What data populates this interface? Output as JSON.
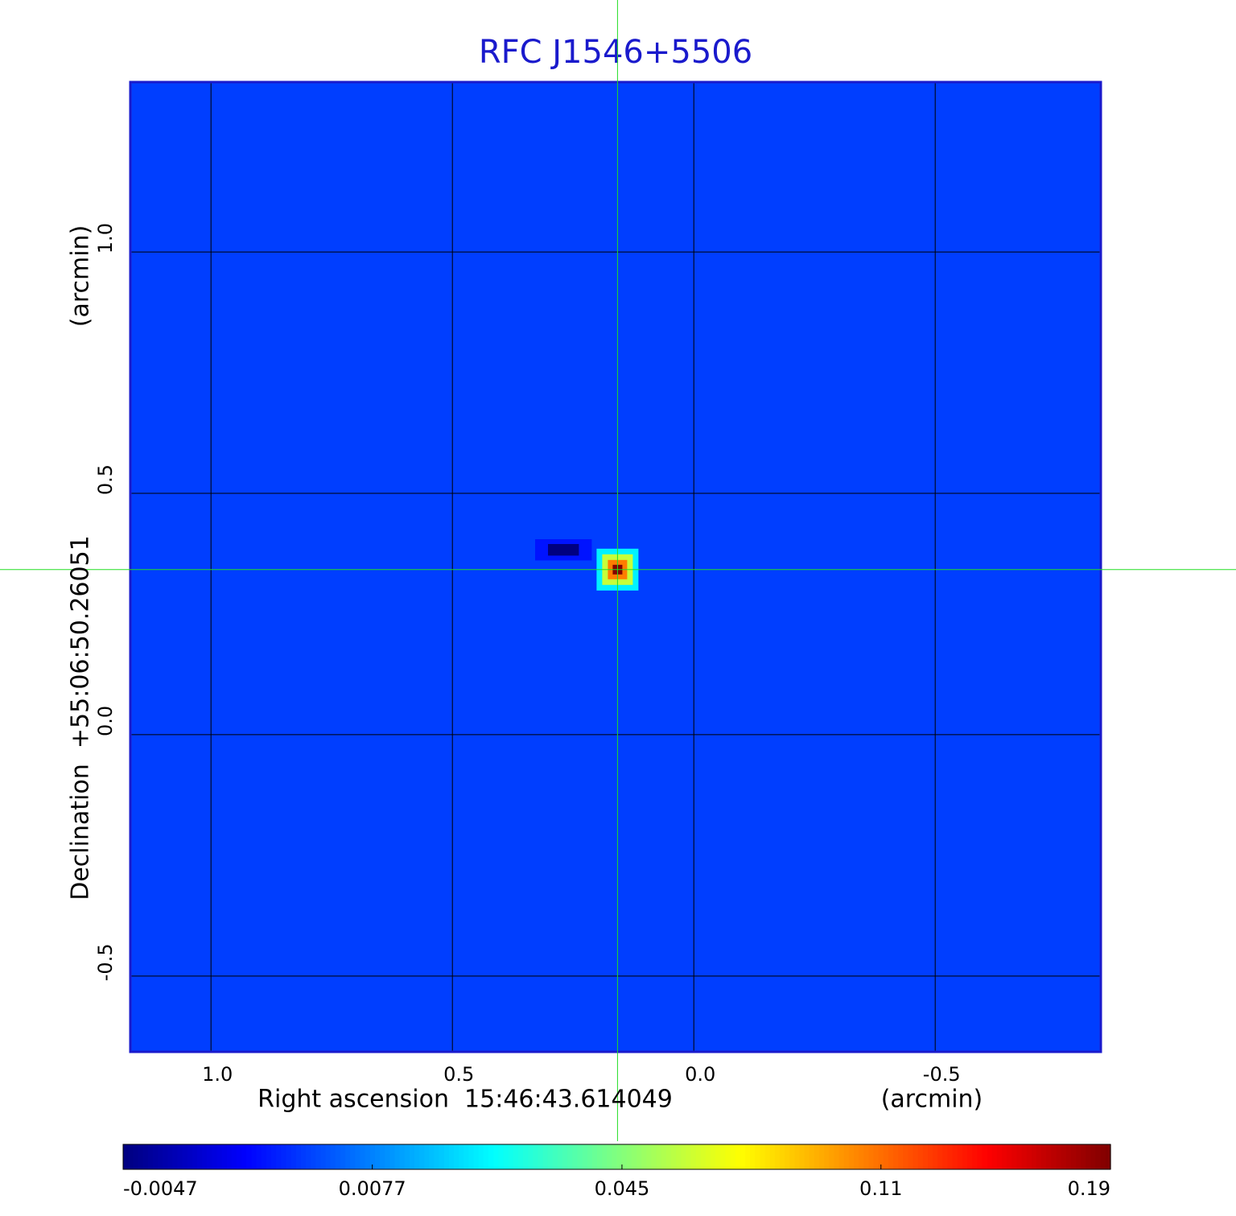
{
  "chart_data": {
    "type": "image",
    "title": "RFC J1546+5506",
    "xlabel": "Right ascension  15:46:43.614049",
    "xunit": "(arcmin)",
    "ylabel": "Declination  +55:06:50.26051",
    "yunit": "(arcmin)",
    "xlim": [
      1.167,
      -0.843
    ],
    "ylim": [
      -0.657,
      1.352
    ],
    "xticks": [
      {
        "value": 1,
        "label": "1.0"
      },
      0.5,
      {
        "value": 0,
        "label": "0.0"
      },
      -0.5
    ],
    "yticks": [
      -0.5,
      {
        "value": 0,
        "label": "0.0"
      },
      0.5,
      {
        "value": 1,
        "label": "1.0"
      }
    ],
    "grid": true,
    "colormap": "jet",
    "colorbar_scale": "sqrt",
    "clim": [
      -0.0047,
      0.19
    ],
    "cticks": [
      -0.0047,
      0.0077,
      0.045,
      0.11,
      0.19
    ],
    "background": 0.002,
    "sources": [
      {
        "x": 0.158,
        "y": 0.342,
        "value": 0.19
      },
      {
        "x": 0.27,
        "y": 0.383,
        "value": -0.0047
      }
    ]
  }
}
